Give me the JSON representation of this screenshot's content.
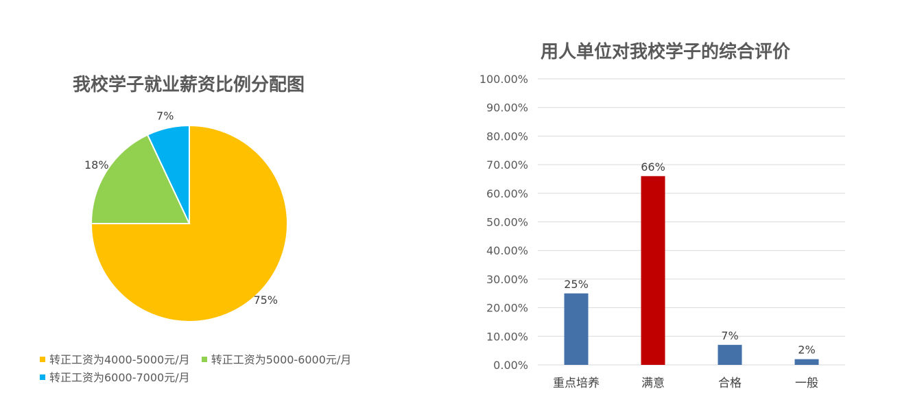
{
  "chart_data": [
    {
      "type": "pie",
      "title": "我校学子就业薪资比例分配图",
      "slices": [
        {
          "label": "转正工资为4000-5000元/月",
          "value": 75,
          "value_label": "75%",
          "color": "#FFC000"
        },
        {
          "label": "转正工资为5000-6000元/月",
          "value": 18,
          "value_label": "18%",
          "color": "#92D050"
        },
        {
          "label": "转正工资为6000-7000元/月",
          "value": 7,
          "value_label": "7%",
          "color": "#00B0F0"
        }
      ],
      "legend_position": "bottom"
    },
    {
      "type": "bar",
      "title": "用人单位对我校学子的综合评价",
      "categories": [
        "重点培养",
        "满意",
        "合格",
        "一般"
      ],
      "values": [
        25,
        66,
        7,
        2
      ],
      "value_labels": [
        "25%",
        "66%",
        "7%",
        "2%"
      ],
      "bar_colors": [
        "#4472A8",
        "#C00000",
        "#4472A8",
        "#4472A8"
      ],
      "y_ticks": [
        "0.00%",
        "10.00%",
        "20.00%",
        "30.00%",
        "40.00%",
        "50.00%",
        "60.00%",
        "70.00%",
        "80.00%",
        "90.00%",
        "100.00%"
      ],
      "ylim": [
        0,
        100
      ],
      "grid": true,
      "gridline_color": "#D9D9D9"
    }
  ]
}
